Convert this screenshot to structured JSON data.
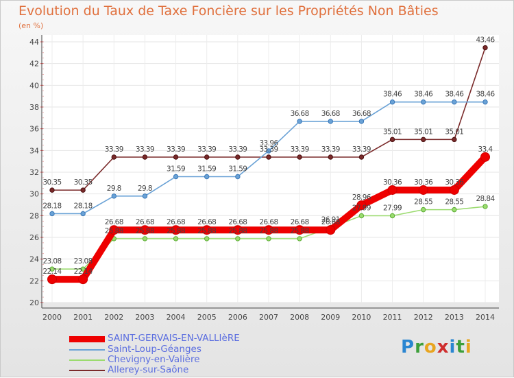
{
  "title": "Evolution du Taux de Taxe Foncière sur les Propriétés Non Bâties",
  "subtitle": "(en %)",
  "logo": {
    "text": "Proxiti",
    "letters": [
      "P",
      "r",
      "o",
      "x",
      "i",
      "t",
      "i"
    ],
    "colors": [
      "#2a86d1",
      "#3d9f3a",
      "#e8a520",
      "#cf2e2e",
      "#2a86d1",
      "#3d9f3a",
      "#e8a520"
    ]
  },
  "chart_data": {
    "type": "line",
    "x": [
      2000,
      2001,
      2002,
      2003,
      2004,
      2005,
      2006,
      2007,
      2008,
      2009,
      2010,
      2011,
      2012,
      2013,
      2014
    ],
    "ylim": [
      20,
      44
    ],
    "yticks": [
      20,
      22,
      24,
      26,
      28,
      30,
      32,
      34,
      36,
      38,
      40,
      42,
      44
    ],
    "grid": true,
    "legend_position": "bottom-left",
    "series": [
      {
        "name": "SAINT-GERVAIS-EN-VALLIèRE",
        "color": "#ee0000",
        "labels": [
          "22.14",
          "22.14",
          "26.68",
          "26.68",
          "26.68",
          "26.68",
          "26.68",
          "26.68",
          "26.68",
          "26.68",
          "28.96",
          "30.36",
          "30.36",
          "30.36",
          "33.4"
        ],
        "values": [
          22.14,
          22.14,
          26.68,
          26.68,
          26.68,
          26.68,
          26.68,
          26.68,
          26.68,
          26.68,
          28.96,
          30.36,
          30.36,
          30.36,
          33.4
        ]
      },
      {
        "name": "Saint-Loup-Géanges",
        "color": "#6aa2d6",
        "labels": [
          "28.18",
          "28.18",
          "29.8",
          "29.8",
          "31.59",
          "31.59",
          "31.59",
          "33.96",
          "36.68",
          "36.68",
          "36.68",
          "38.46",
          "38.46",
          "38.46",
          "38.46"
        ],
        "values": [
          28.18,
          28.18,
          29.8,
          29.8,
          31.59,
          31.59,
          31.59,
          33.96,
          36.68,
          36.68,
          36.68,
          38.46,
          38.46,
          38.46,
          38.46
        ]
      },
      {
        "name": "Chevigny-en-Valière",
        "color": "#9bdb6f",
        "labels": [
          "23.08",
          "23.08",
          "25.88",
          "25.88",
          "25.88",
          "25.88",
          "25.88",
          "25.88",
          "25.88",
          "26.91",
          "27.99",
          "27.99",
          "28.55",
          "28.55",
          "28.84"
        ],
        "values": [
          23.08,
          23.08,
          25.88,
          25.88,
          25.88,
          25.88,
          25.88,
          25.88,
          25.88,
          26.91,
          27.99,
          27.99,
          28.55,
          28.55,
          28.84
        ]
      },
      {
        "name": "Allerey-sur-Saône",
        "color": "#7a2a2a",
        "labels": [
          "30.35",
          "30.35",
          "33.39",
          "33.39",
          "33.39",
          "33.39",
          "33.39",
          "33.39",
          "33.39",
          "33.39",
          "33.39",
          "35.01",
          "35.01",
          "35.01",
          "43.46"
        ],
        "values": [
          30.35,
          30.35,
          33.39,
          33.39,
          33.39,
          33.39,
          33.39,
          33.39,
          33.39,
          33.39,
          33.39,
          35.01,
          35.01,
          35.01,
          43.46
        ]
      }
    ]
  }
}
